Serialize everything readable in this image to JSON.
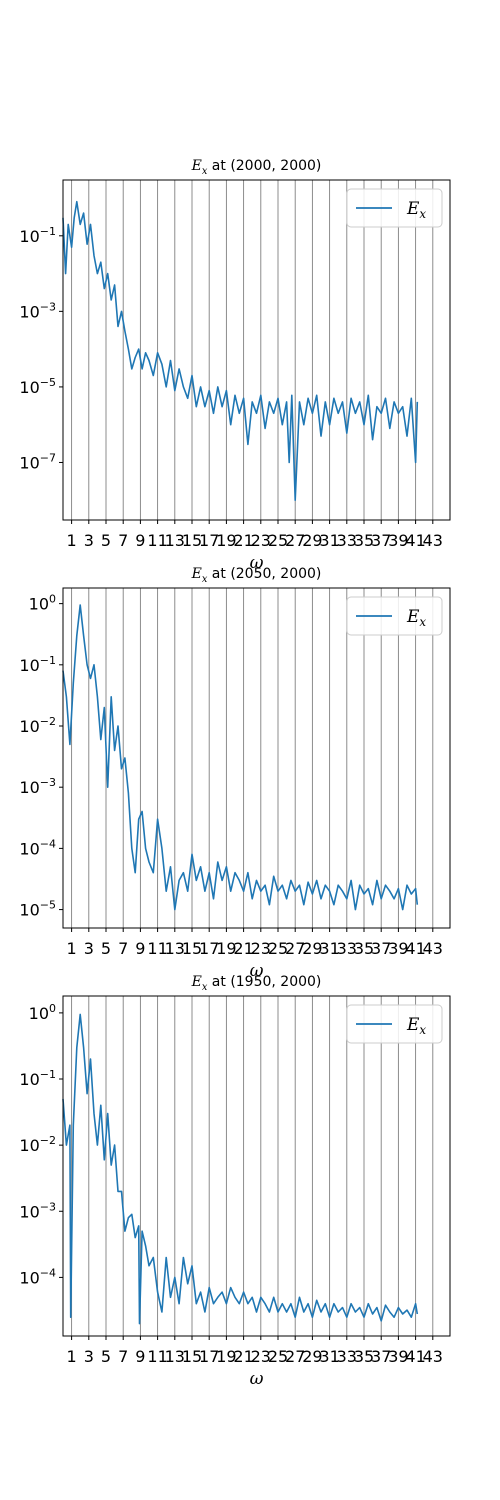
{
  "colors": {
    "series": "#1f77b4",
    "vline": "#808080"
  },
  "x_ticks": [
    "1",
    "3",
    "5",
    "7",
    "9",
    "11",
    "13",
    "15",
    "17",
    "19",
    "21",
    "23",
    "25",
    "27",
    "29",
    "31",
    "33",
    "35",
    "37",
    "39",
    "41",
    "43"
  ],
  "chart_data": [
    {
      "type": "line",
      "title": "E_x at (2000, 2000)",
      "xlabel": "ω",
      "ylabel": "",
      "yscale": "log",
      "xlim": [
        0,
        45
      ],
      "ylim": [
        3e-09,
        3
      ],
      "yticks": [
        "10^-1",
        "10^-3",
        "10^-5",
        "10^-7"
      ],
      "legend": {
        "label": "E_x",
        "loc": "upper right"
      },
      "vertical_lines": [
        1,
        3,
        5,
        7,
        9,
        11,
        13,
        15,
        17,
        19,
        21,
        23,
        25,
        27,
        29,
        31,
        33,
        35,
        37,
        39,
        41,
        43
      ],
      "series": [
        {
          "name": "E_x",
          "x": [
            0,
            0.3,
            0.6,
            1,
            1.3,
            1.6,
            2,
            2.4,
            2.8,
            3.2,
            3.6,
            4,
            4.4,
            4.8,
            5.2,
            5.6,
            6,
            6.4,
            6.8,
            7.2,
            7.6,
            8,
            8.4,
            8.8,
            9.2,
            9.6,
            10,
            10.5,
            11,
            11.5,
            12,
            12.5,
            13,
            13.5,
            14,
            14.5,
            15,
            15.5,
            16,
            16.5,
            17,
            17.5,
            18,
            18.5,
            19,
            19.5,
            20,
            20.5,
            21,
            21.5,
            22,
            22.5,
            23,
            23.5,
            24,
            24.5,
            25,
            25.5,
            26,
            26.3,
            26.6,
            27,
            27.5,
            28,
            28.5,
            29,
            29.5,
            30,
            30.5,
            31,
            31.5,
            32,
            32.5,
            33,
            33.5,
            34,
            34.5,
            35,
            35.5,
            36,
            36.5,
            37,
            37.5,
            38,
            38.5,
            39,
            39.5,
            40,
            40.5,
            41,
            41.2
          ],
          "y": [
            0.3,
            0.01,
            0.2,
            0.05,
            0.3,
            0.8,
            0.2,
            0.4,
            0.06,
            0.2,
            0.03,
            0.01,
            0.02,
            0.004,
            0.01,
            0.002,
            0.005,
            0.0004,
            0.001,
            0.0003,
            0.0001,
            3e-05,
            6e-05,
            0.0001,
            3e-05,
            8e-05,
            5e-05,
            2e-05,
            8e-05,
            4e-05,
            1e-05,
            5e-05,
            8e-06,
            3e-05,
            1e-05,
            5e-06,
            2e-05,
            3e-06,
            1e-05,
            3e-06,
            8e-06,
            2e-06,
            1e-05,
            3e-06,
            8e-06,
            1e-06,
            6e-06,
            2e-06,
            5e-06,
            3e-07,
            4e-06,
            2e-06,
            6e-06,
            8e-07,
            4e-06,
            2e-06,
            5e-06,
            1e-06,
            4e-06,
            1e-07,
            6e-06,
            1e-08,
            4e-06,
            1e-06,
            5e-06,
            2e-06,
            6e-06,
            5e-07,
            4e-06,
            1e-06,
            5e-06,
            2e-06,
            4e-06,
            6e-07,
            5e-06,
            2e-06,
            4e-06,
            1e-06,
            6e-06,
            4e-07,
            3e-06,
            2e-06,
            5e-06,
            8e-07,
            4e-06,
            2e-06,
            3e-06,
            5e-07,
            5e-06,
            1e-07,
            4e-06
          ]
        }
      ]
    },
    {
      "type": "line",
      "title": "E_x at (2050, 2000)",
      "xlabel": "ω",
      "ylabel": "",
      "yscale": "log",
      "xlim": [
        0,
        45
      ],
      "ylim": [
        5e-06,
        1.8
      ],
      "yticks": [
        "10^0",
        "10^-1",
        "10^-2",
        "10^-3",
        "10^-4",
        "10^-5"
      ],
      "legend": {
        "label": "E_x",
        "loc": "upper right"
      },
      "vertical_lines": [
        1,
        3,
        5,
        7,
        9,
        11,
        13,
        15,
        17,
        19,
        21,
        23,
        25,
        27,
        29,
        31,
        33,
        35,
        37,
        39,
        41,
        43
      ],
      "series": [
        {
          "name": "E_x",
          "x": [
            0,
            0.4,
            0.8,
            1.2,
            1.6,
            2,
            2.4,
            2.8,
            3.2,
            3.6,
            4,
            4.4,
            4.8,
            5.2,
            5.6,
            6,
            6.4,
            6.8,
            7.2,
            7.6,
            8,
            8.4,
            8.8,
            9.2,
            9.6,
            10,
            10.5,
            11,
            11.5,
            12,
            12.5,
            13,
            13.5,
            14,
            14.5,
            15,
            15.5,
            16,
            16.5,
            17,
            17.5,
            18,
            18.5,
            19,
            19.5,
            20,
            20.5,
            21,
            21.5,
            22,
            22.5,
            23,
            23.5,
            24,
            24.5,
            25,
            25.5,
            26,
            26.5,
            27,
            27.5,
            28,
            28.5,
            29,
            29.5,
            30,
            30.5,
            31,
            31.5,
            32,
            32.5,
            33,
            33.5,
            34,
            34.5,
            35,
            35.5,
            36,
            36.5,
            37,
            37.5,
            38,
            38.5,
            39,
            39.5,
            40,
            40.5,
            41,
            41.2
          ],
          "y": [
            0.08,
            0.03,
            0.005,
            0.05,
            0.3,
            0.95,
            0.3,
            0.1,
            0.06,
            0.1,
            0.03,
            0.006,
            0.02,
            0.001,
            0.03,
            0.004,
            0.01,
            0.002,
            0.003,
            0.0008,
            0.0001,
            4e-05,
            0.0003,
            0.0004,
            0.0001,
            6e-05,
            4e-05,
            0.0003,
            0.0001,
            2e-05,
            5e-05,
            1e-05,
            3e-05,
            4e-05,
            2e-05,
            8e-05,
            3e-05,
            5e-05,
            2e-05,
            4e-05,
            1.5e-05,
            6e-05,
            3e-05,
            5e-05,
            2e-05,
            4e-05,
            3e-05,
            2e-05,
            4e-05,
            1.5e-05,
            3e-05,
            2e-05,
            2.5e-05,
            1.2e-05,
            3.5e-05,
            2e-05,
            2.5e-05,
            1.5e-05,
            3e-05,
            2e-05,
            2.5e-05,
            1.2e-05,
            2.8e-05,
            1.8e-05,
            3e-05,
            1.5e-05,
            2.5e-05,
            2e-05,
            1.2e-05,
            2.5e-05,
            2e-05,
            1.5e-05,
            3e-05,
            1e-05,
            2.5e-05,
            1.8e-05,
            2.2e-05,
            1.2e-05,
            3e-05,
            1.5e-05,
            2.5e-05,
            2e-05,
            1.5e-05,
            2.2e-05,
            1e-05,
            2.5e-05,
            1.8e-05,
            2.2e-05,
            1.2e-05
          ]
        }
      ]
    },
    {
      "type": "line",
      "title": "E_x at (1950, 2000)",
      "xlabel": "ω",
      "ylabel": "",
      "yscale": "log",
      "xlim": [
        0,
        45
      ],
      "ylim": [
        1.3e-05,
        1.8
      ],
      "yticks": [
        "10^0",
        "10^-1",
        "10^-2",
        "10^-3",
        "10^-4"
      ],
      "legend": {
        "label": "E_x",
        "loc": "upper right"
      },
      "vertical_lines": [
        1,
        3,
        5,
        7,
        9,
        11,
        13,
        15,
        17,
        19,
        21,
        23,
        25,
        27,
        29,
        31,
        33,
        35,
        37,
        39,
        41,
        43
      ],
      "series": [
        {
          "name": "E_x",
          "x": [
            0,
            0.4,
            0.8,
            0.9,
            1.2,
            1.6,
            2,
            2.4,
            2.8,
            3.2,
            3.6,
            4,
            4.4,
            4.8,
            5.2,
            5.6,
            6,
            6.4,
            6.8,
            7.2,
            7.6,
            8,
            8.4,
            8.8,
            8.9,
            9.2,
            9.6,
            10,
            10.5,
            11,
            11.5,
            12,
            12.5,
            13,
            13.5,
            14,
            14.5,
            15,
            15.5,
            16,
            16.5,
            17,
            17.5,
            18,
            18.5,
            19,
            19.5,
            20,
            20.5,
            21,
            21.5,
            22,
            22.5,
            23,
            23.5,
            24,
            24.5,
            25,
            25.5,
            26,
            26.5,
            27,
            27.5,
            28,
            28.5,
            29,
            29.5,
            30,
            30.5,
            31,
            31.5,
            32,
            32.5,
            33,
            33.5,
            34,
            34.5,
            35,
            35.5,
            36,
            36.5,
            37,
            37.5,
            38,
            38.5,
            39,
            39.5,
            40,
            40.5,
            41,
            41.2
          ],
          "y": [
            0.05,
            0.01,
            0.02,
            2.5e-05,
            0.02,
            0.3,
            0.95,
            0.3,
            0.06,
            0.2,
            0.03,
            0.01,
            0.04,
            0.006,
            0.03,
            0.005,
            0.01,
            0.002,
            0.002,
            0.0005,
            0.0008,
            0.0009,
            0.0004,
            0.0006,
            2e-05,
            0.0005,
            0.0003,
            0.00015,
            0.0002,
            6e-05,
            3e-05,
            0.0002,
            5e-05,
            0.0001,
            4e-05,
            0.0002,
            8e-05,
            0.00015,
            4e-05,
            6e-05,
            3e-05,
            7e-05,
            4e-05,
            5e-05,
            6e-05,
            4e-05,
            7e-05,
            5e-05,
            4e-05,
            6e-05,
            4e-05,
            5e-05,
            3e-05,
            5e-05,
            4e-05,
            3e-05,
            5e-05,
            3e-05,
            4e-05,
            3e-05,
            4e-05,
            2.5e-05,
            5e-05,
            3e-05,
            4e-05,
            2.5e-05,
            4.5e-05,
            3e-05,
            4e-05,
            2.5e-05,
            4e-05,
            3e-05,
            3.5e-05,
            2.5e-05,
            4e-05,
            3e-05,
            3.5e-05,
            2.5e-05,
            4e-05,
            2.8e-05,
            3.5e-05,
            2.2e-05,
            3.8e-05,
            3e-05,
            2.5e-05,
            3.5e-05,
            2.8e-05,
            3.2e-05,
            2.5e-05,
            4e-05,
            2.8e-05
          ]
        }
      ]
    }
  ]
}
